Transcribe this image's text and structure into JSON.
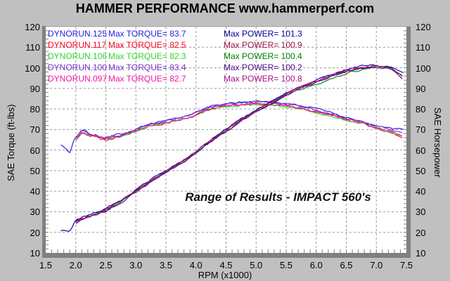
{
  "title": "HAMMER PERFORMANCE www.hammerperf.com",
  "colors": {
    "background": "#c0c0c0",
    "plot_background": "#ffffff",
    "frame": "#808080",
    "frame_top": "#a8a8a8",
    "grid": "#989898",
    "text": "#000000"
  },
  "chart_data": {
    "type": "line",
    "title": "HAMMER PERFORMANCE www.hammerperf.com",
    "xlabel": "RPM (x1000)",
    "ylabel_left": "SAE Torque (ft-lbs)",
    "ylabel_right": "SAE Horsepower",
    "xlim": [
      1.5,
      7.5
    ],
    "ylim": [
      10,
      120
    ],
    "x_ticks": [
      "1.5",
      "2.0",
      "2.5",
      "3.0",
      "3.5",
      "4.0",
      "4.5",
      "5.0",
      "5.5",
      "6.0",
      "6.5",
      "7.0",
      "7.5"
    ],
    "y_ticks_left": [
      "120",
      "110",
      "100",
      "90",
      "80",
      "70",
      "60",
      "50",
      "40",
      "30",
      "20",
      "10"
    ],
    "y_ticks_right": [
      "120",
      "110",
      "100",
      "90",
      "80",
      "70",
      "60",
      "50",
      "40",
      "30",
      "20",
      "10"
    ],
    "grid": "dashed, major every 0.5 RPM and 10 units, minor ticks every 0.1 RPM / 2 units",
    "legend_position": "top-left inside plot",
    "annotation": "Range of Results - IMPACT 560's",
    "rpm": [
      1.75,
      1.9,
      2.0,
      2.1,
      2.25,
      2.5,
      2.75,
      3.0,
      3.25,
      3.5,
      3.75,
      4.0,
      4.25,
      4.5,
      4.75,
      5.0,
      5.25,
      5.5,
      5.75,
      6.0,
      6.25,
      6.5,
      6.75,
      7.0,
      7.25,
      7.45
    ],
    "runs": [
      {
        "name": "DYNORUN.125",
        "torque_label": "Max TORQUE= 83.7",
        "power_label": "Max POWER= 101.3",
        "max_torque": 83.7,
        "max_power": 101.3,
        "torque_color": "#2222dd",
        "power_color": "#000095",
        "torque": [
          63,
          58.5,
          66.4,
          69.8,
          68.4,
          66.4,
          67.9,
          70.4,
          72.9,
          74.4,
          75.9,
          78.4,
          81.2,
          82.4,
          83.4,
          83.7,
          83.4,
          82.5,
          81.4,
          79.9,
          78.1,
          76.1,
          74.2,
          71.9,
          70.2,
          69.8
        ],
        "power": [
          21,
          20.5,
          25.6,
          27.1,
          28.6,
          31.6,
          35.6,
          40.6,
          45.6,
          50.1,
          54.6,
          59.6,
          65.1,
          70.1,
          75.1,
          79.6,
          83.4,
          87.6,
          91.1,
          93.9,
          96.9,
          99.3,
          100.8,
          101.3,
          100.7,
          97.6
        ]
      },
      {
        "name": "DYNORUN.117",
        "torque_label": "Max TORQUE= 82.5",
        "power_label": "Max POWER= 100.9",
        "max_torque": 82.5,
        "max_power": 100.9,
        "torque_color": "#ff0022",
        "power_color": "#a01048",
        "torque": [
          null,
          null,
          65.2,
          68.2,
          67.2,
          65.2,
          66.7,
          69.2,
          71.7,
          73.2,
          74.7,
          77.2,
          80.0,
          81.2,
          82.2,
          82.5,
          82.2,
          81.3,
          80.2,
          78.7,
          76.9,
          74.9,
          73.0,
          70.7,
          68.3,
          66.2
        ],
        "power": [
          null,
          null,
          25.2,
          26.7,
          28.2,
          31.2,
          35.2,
          40.2,
          45.2,
          49.7,
          54.2,
          59.2,
          64.7,
          69.7,
          74.7,
          79.2,
          83.0,
          87.2,
          90.7,
          93.5,
          96.5,
          98.9,
          100.4,
          100.9,
          100.0,
          94.0
        ]
      },
      {
        "name": "DYNORUN.106",
        "torque_label": "Max TORQUE= 82.3",
        "power_label": "Max POWER= 100.4",
        "max_torque": 82.3,
        "max_power": 100.4,
        "torque_color": "#2fd32f",
        "power_color": "#008000",
        "torque": [
          null,
          null,
          65.0,
          68.0,
          67.0,
          65.0,
          66.5,
          69.0,
          71.5,
          73.0,
          74.5,
          77.0,
          79.8,
          81.0,
          82.0,
          82.3,
          82.0,
          81.1,
          79.7,
          77.8,
          76.2,
          74.5,
          72.8,
          70.5,
          68.5,
          66.8
        ],
        "power": [
          null,
          null,
          24.7,
          26.2,
          27.7,
          30.7,
          34.7,
          39.7,
          44.7,
          49.2,
          53.7,
          58.7,
          64.2,
          69.2,
          74.2,
          78.7,
          82.5,
          86.7,
          89.7,
          91.8,
          94.4,
          97.2,
          99.2,
          100.4,
          99.8,
          95.8
        ]
      },
      {
        "name": "DYNORUN.100",
        "torque_label": "Max TORQUE= 83.4",
        "power_label": "Max POWER= 100.2",
        "max_torque": 83.4,
        "max_power": 100.2,
        "torque_color": "#7733cc",
        "power_color": "#4e0d8c",
        "torque": [
          null,
          null,
          66.1,
          69.1,
          68.1,
          66.1,
          67.6,
          70.1,
          72.6,
          74.1,
          75.6,
          78.1,
          80.9,
          82.1,
          83.1,
          83.4,
          83.1,
          82.2,
          81.1,
          79.6,
          77.8,
          75.8,
          73.9,
          71.6,
          69.6,
          67.9
        ],
        "power": [
          null,
          null,
          24.5,
          26.0,
          27.5,
          30.5,
          34.5,
          39.5,
          44.5,
          49.0,
          53.5,
          58.5,
          64.0,
          69.0,
          74.0,
          78.5,
          82.3,
          86.5,
          90.0,
          92.8,
          95.8,
          98.2,
          99.7,
          100.2,
          99.4,
          95.0
        ]
      },
      {
        "name": "DYNORUN.097",
        "torque_label": "Max TORQUE= 82.7",
        "power_label": "Max POWER= 100.8",
        "max_torque": 82.7,
        "max_power": 100.8,
        "torque_color": "#ee18a0",
        "power_color": "#aa0e80",
        "torque": [
          null,
          null,
          65.4,
          68.4,
          67.4,
          65.4,
          66.9,
          69.4,
          71.9,
          73.4,
          74.9,
          77.4,
          80.2,
          81.4,
          82.4,
          82.7,
          82.4,
          81.5,
          80.4,
          78.9,
          77.1,
          75.1,
          73.2,
          70.9,
          68.7,
          66.6
        ],
        "power": [
          null,
          null,
          25.1,
          26.6,
          28.1,
          31.1,
          35.1,
          40.1,
          45.1,
          49.6,
          54.1,
          59.1,
          64.6,
          69.6,
          74.6,
          79.1,
          82.9,
          87.1,
          90.6,
          93.4,
          96.4,
          98.8,
          100.3,
          100.8,
          99.6,
          93.5
        ]
      }
    ]
  }
}
